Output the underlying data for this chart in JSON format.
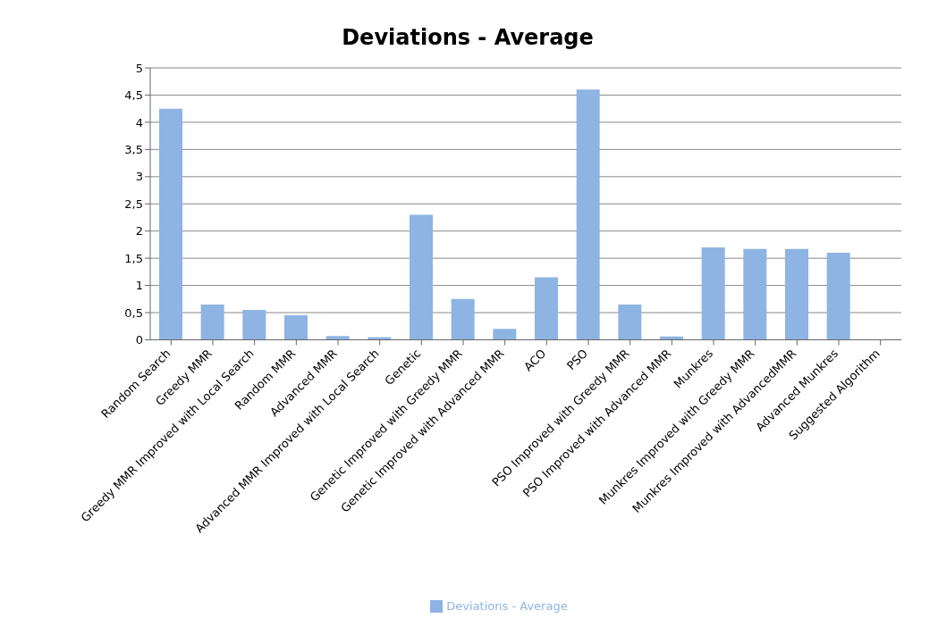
{
  "chart_data": {
    "type": "bar",
    "title": "Deviations - Average",
    "categories": [
      "Random Search",
      "Greedy MMR",
      "Greedy MMR Improved with Local Search",
      "Random MMR",
      "Advanced MMR",
      "Advanced MMR Improved with Local Search",
      "Genetic",
      "Genetic Improved with Greedy MMR",
      "Genetic Improved with Advanced MMR",
      "ACO",
      "PSO",
      "PSO Improved with Greedy MMR",
      "PSO Improved with Advanced MMR",
      "Munkres",
      "Munkres Improved with Greedy MMR",
      "Munkres Improved with AdvancedMMR",
      "Advanced Munkres",
      "Suggested Algorithm"
    ],
    "series": [
      {
        "name": "Deviations - Average",
        "color": "#8db4e2",
        "values": [
          4.25,
          0.65,
          0.55,
          0.45,
          0.07,
          0.05,
          2.3,
          0.75,
          0.2,
          1.15,
          4.6,
          0.65,
          0.06,
          1.7,
          1.67,
          1.67,
          1.6,
          0
        ]
      }
    ],
    "ylim": [
      0,
      5
    ],
    "yticks": [
      {
        "value": 0,
        "label": "0"
      },
      {
        "value": 0.5,
        "label": "0,5"
      },
      {
        "value": 1,
        "label": "1"
      },
      {
        "value": 1.5,
        "label": "1,5"
      },
      {
        "value": 2,
        "label": "2"
      },
      {
        "value": 2.5,
        "label": "2,5"
      },
      {
        "value": 3,
        "label": "3"
      },
      {
        "value": 3.5,
        "label": "3,5"
      },
      {
        "value": 4,
        "label": "4"
      },
      {
        "value": 4.5,
        "label": "4,5"
      },
      {
        "value": 5,
        "label": "5"
      }
    ],
    "grid": "y",
    "legend": "bottom"
  }
}
